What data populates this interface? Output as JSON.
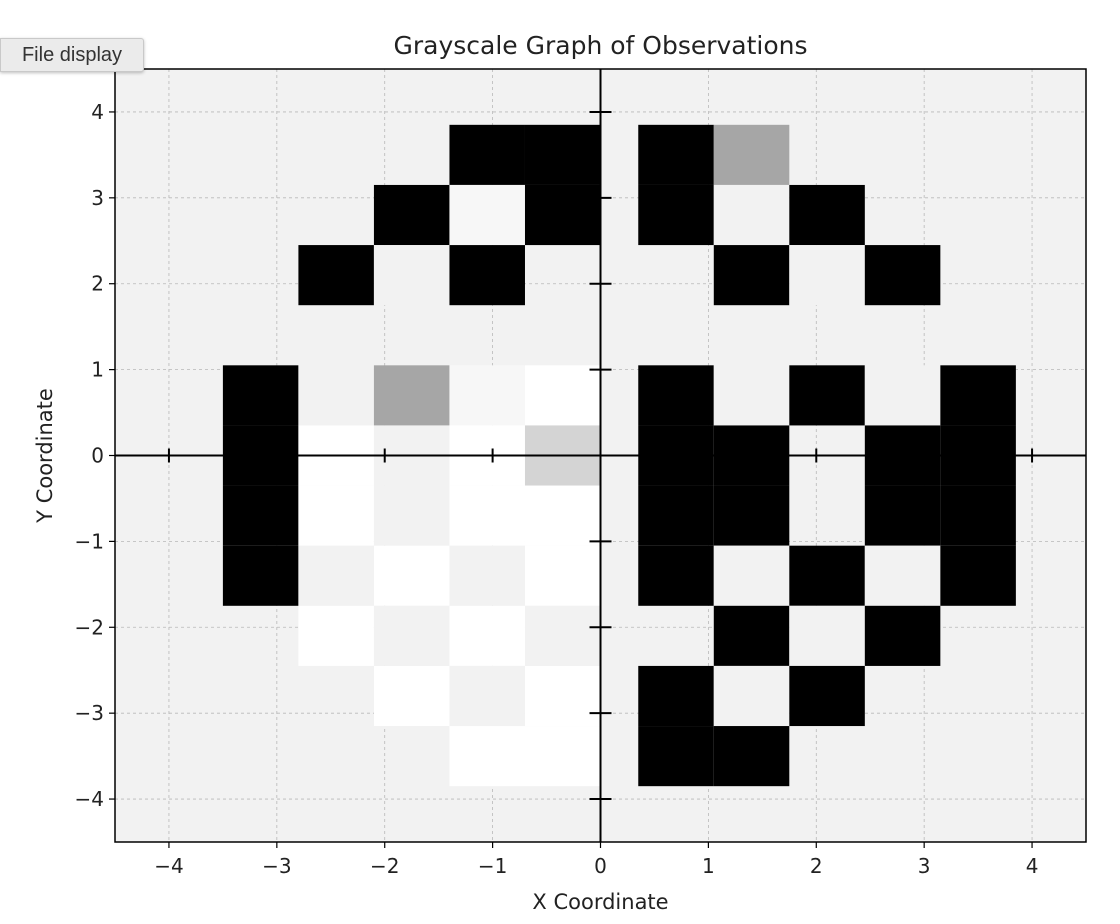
{
  "toolbar": {
    "file_display_label": "File display"
  },
  "chart_data": {
    "type": "heatmap",
    "title": "Grayscale Graph of Observations",
    "xlabel": "X Coordinate",
    "ylabel": "Y Coordinate",
    "xlim": [
      -4.5,
      4.5
    ],
    "ylim": [
      -4.5,
      4.5
    ],
    "x_ticks": [
      -4,
      -3,
      -2,
      -1,
      0,
      1,
      2,
      3,
      4
    ],
    "y_ticks": [
      -4,
      -3,
      -2,
      -1,
      0,
      1,
      2,
      3,
      4
    ],
    "x_tick_labels": [
      "−4",
      "−3",
      "−2",
      "−1",
      "0",
      "1",
      "2",
      "3",
      "4"
    ],
    "y_tick_labels": [
      "−4",
      "−3",
      "−2",
      "−1",
      "0",
      "1",
      "2",
      "3",
      "4"
    ],
    "grid": true,
    "background_color": "#f2f2f2",
    "cell_size": 0.7,
    "cells": [
      {
        "x": -3.5,
        "y": 1.05,
        "value": 0
      },
      {
        "x": -3.5,
        "y": 0.35,
        "value": 0
      },
      {
        "x": -2.8,
        "y": 2.45,
        "value": 0
      },
      {
        "x": -2.8,
        "y": 1.05,
        "value": 0.95
      },
      {
        "x": -2.8,
        "y": 0.35,
        "value": 1
      },
      {
        "x": -2.1,
        "y": 3.15,
        "value": 0
      },
      {
        "x": -2.1,
        "y": 2.45,
        "value": 0.95
      },
      {
        "x": -2.1,
        "y": 1.05,
        "value": 0.65
      },
      {
        "x": -2.1,
        "y": 0.35,
        "value": 0.95
      },
      {
        "x": -1.4,
        "y": 3.85,
        "value": 0
      },
      {
        "x": -1.4,
        "y": 3.15,
        "value": 0.97
      },
      {
        "x": -1.4,
        "y": 2.45,
        "value": 0
      },
      {
        "x": -1.4,
        "y": 1.05,
        "value": 0.97
      },
      {
        "x": -1.4,
        "y": 0.35,
        "value": 1
      },
      {
        "x": -0.7,
        "y": 3.85,
        "value": 0
      },
      {
        "x": -0.7,
        "y": 3.15,
        "value": 0
      },
      {
        "x": -0.7,
        "y": 1.05,
        "value": 1
      },
      {
        "x": -0.7,
        "y": 0.35,
        "value": 0.83
      },
      {
        "x": 0.35,
        "y": 3.85,
        "value": 0
      },
      {
        "x": 0.35,
        "y": 3.15,
        "value": 0
      },
      {
        "x": 0.35,
        "y": 1.05,
        "value": 0
      },
      {
        "x": 0.35,
        "y": 0.35,
        "value": 0
      },
      {
        "x": 1.05,
        "y": 3.85,
        "value": 0.65
      },
      {
        "x": 1.05,
        "y": 3.15,
        "value": 0.95
      },
      {
        "x": 1.05,
        "y": 2.45,
        "value": 0
      },
      {
        "x": 1.05,
        "y": 1.05,
        "value": 0.95
      },
      {
        "x": 1.05,
        "y": 0.35,
        "value": 0
      },
      {
        "x": 1.75,
        "y": 3.15,
        "value": 0
      },
      {
        "x": 1.75,
        "y": 2.45,
        "value": 0.95
      },
      {
        "x": 1.75,
        "y": 1.05,
        "value": 0
      },
      {
        "x": 2.45,
        "y": 2.45,
        "value": 0
      },
      {
        "x": 2.45,
        "y": 1.05,
        "value": 0.95
      },
      {
        "x": 2.45,
        "y": 0.35,
        "value": 0
      },
      {
        "x": 3.15,
        "y": 1.05,
        "value": 0
      },
      {
        "x": 3.15,
        "y": 0.35,
        "value": 0
      },
      {
        "x": -3.5,
        "y": -0.35,
        "value": 0
      },
      {
        "x": -3.5,
        "y": -1.05,
        "value": 0
      },
      {
        "x": -2.8,
        "y": -0.35,
        "value": 1
      },
      {
        "x": -2.8,
        "y": -1.05,
        "value": 0.95
      },
      {
        "x": -2.8,
        "y": -1.75,
        "value": 1
      },
      {
        "x": -2.1,
        "y": -0.35,
        "value": 0.95
      },
      {
        "x": -2.1,
        "y": -1.05,
        "value": 1
      },
      {
        "x": -2.1,
        "y": -1.75,
        "value": 0.95
      },
      {
        "x": -2.1,
        "y": -2.45,
        "value": 1
      },
      {
        "x": -1.4,
        "y": -0.35,
        "value": 1
      },
      {
        "x": -1.4,
        "y": -1.05,
        "value": 0.95
      },
      {
        "x": -1.4,
        "y": -1.75,
        "value": 1
      },
      {
        "x": -1.4,
        "y": -2.45,
        "value": 0.95
      },
      {
        "x": -1.4,
        "y": -3.15,
        "value": 1
      },
      {
        "x": -0.7,
        "y": -0.35,
        "value": 1
      },
      {
        "x": -0.7,
        "y": -1.05,
        "value": 1
      },
      {
        "x": -0.7,
        "y": -1.75,
        "value": 0.95
      },
      {
        "x": -0.7,
        "y": -2.45,
        "value": 1
      },
      {
        "x": -0.7,
        "y": -3.15,
        "value": 1
      },
      {
        "x": 0.35,
        "y": -0.35,
        "value": 0
      },
      {
        "x": 0.35,
        "y": -1.05,
        "value": 0
      },
      {
        "x": 0.35,
        "y": -2.45,
        "value": 0
      },
      {
        "x": 0.35,
        "y": -3.15,
        "value": 0
      },
      {
        "x": 1.05,
        "y": -0.35,
        "value": 0
      },
      {
        "x": 1.05,
        "y": -1.05,
        "value": 0.95
      },
      {
        "x": 1.05,
        "y": -1.75,
        "value": 0
      },
      {
        "x": 1.05,
        "y": -2.45,
        "value": 0.95
      },
      {
        "x": 1.05,
        "y": -3.15,
        "value": 0
      },
      {
        "x": 1.75,
        "y": -1.05,
        "value": 0
      },
      {
        "x": 1.75,
        "y": -1.75,
        "value": 0.95
      },
      {
        "x": 1.75,
        "y": -2.45,
        "value": 0
      },
      {
        "x": 2.45,
        "y": -0.35,
        "value": 0
      },
      {
        "x": 2.45,
        "y": -1.05,
        "value": 0.95
      },
      {
        "x": 2.45,
        "y": -1.75,
        "value": 0
      },
      {
        "x": 3.15,
        "y": -0.35,
        "value": 0
      },
      {
        "x": 3.15,
        "y": -1.05,
        "value": 0
      }
    ]
  }
}
